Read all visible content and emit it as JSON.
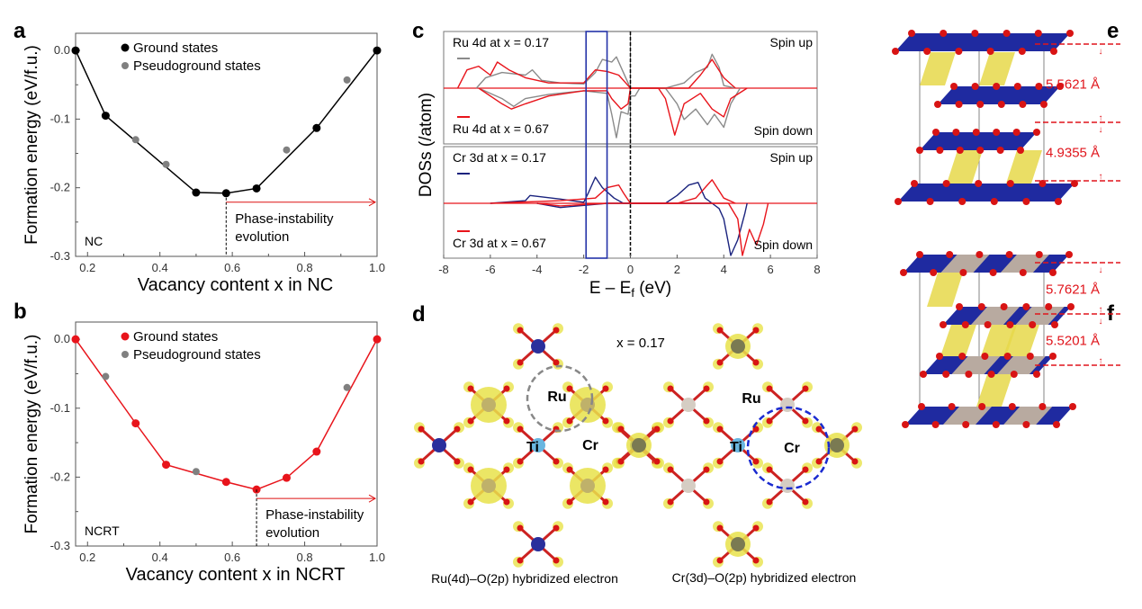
{
  "panel_labels": {
    "a": "a",
    "b": "b",
    "c": "c",
    "d": "d",
    "e": "e",
    "f": "f"
  },
  "colors": {
    "ground_a": "#000000",
    "ground_b": "#e8141b",
    "pseudo": "#808080",
    "ru017": "#8a8a8a",
    "ru067": "#e8141b",
    "cr017": "#1a237e",
    "cr067": "#e8141b",
    "highlight_box": "#2433a8",
    "octahedron_blue": "#1f2aa0",
    "octahedron_yellow": "#e6d84a",
    "oxygen": "#d81414"
  },
  "chart_data": [
    {
      "id": "a",
      "type": "scatter",
      "xlabel": "Vacancy content x in NC",
      "ylabel": "Formation energy (eV/f.u.)",
      "xlim": [
        0.167,
        1.0
      ],
      "ylim": [
        -0.3,
        0.025
      ],
      "xticks": [
        "0.2",
        "0.4",
        "0.6",
        "0.8",
        "1.0"
      ],
      "yticks": [
        "0.0",
        "-0.1",
        "-0.2",
        "-0.3"
      ],
      "legend": [
        "Ground states",
        "Pseudoground states"
      ],
      "legend_placement": "top-left",
      "inset_label": "NC",
      "annotation": "Phase-instability evolution",
      "annotation_lines": [
        "Phase-instability",
        "evolution"
      ],
      "annotation_x": 0.583,
      "ground": {
        "x": [
          0.167,
          0.25,
          0.5,
          0.583,
          0.667,
          0.833,
          1.0
        ],
        "y": [
          0,
          -0.095,
          -0.207,
          -0.208,
          -0.201,
          -0.113,
          0
        ]
      },
      "pseudo": {
        "x": [
          0.333,
          0.417,
          0.75,
          0.917
        ],
        "y": [
          -0.13,
          -0.166,
          -0.145,
          -0.043
        ]
      }
    },
    {
      "id": "b",
      "type": "scatter",
      "xlabel": "Vacancy content x in NCRT",
      "ylabel": "Formation energy (eV/f.u.)",
      "xlim": [
        0.167,
        1.0
      ],
      "ylim": [
        -0.3,
        0.025
      ],
      "xticks": [
        "0.2",
        "0.4",
        "0.6",
        "0.8",
        "1.0"
      ],
      "yticks": [
        "0.0",
        "-0.1",
        "-0.2",
        "-0.3"
      ],
      "legend": [
        "Ground states",
        "Pseudoground states"
      ],
      "legend_placement": "top-left",
      "inset_label": "NCRT",
      "annotation": "Phase-instability evolution",
      "annotation_lines": [
        "Phase-instability",
        "evolution"
      ],
      "annotation_x": 0.667,
      "ground": {
        "x": [
          0.167,
          0.333,
          0.417,
          0.583,
          0.667,
          0.75,
          0.833,
          1.0
        ],
        "y": [
          0,
          -0.122,
          -0.182,
          -0.207,
          -0.218,
          -0.201,
          -0.163,
          0
        ]
      },
      "pseudo": {
        "x": [
          0.25,
          0.5,
          0.917
        ],
        "y": [
          -0.054,
          -0.192,
          -0.07
        ]
      }
    },
    {
      "id": "c",
      "type": "line",
      "xlabel": "E – E",
      "xlabel_sub": "f",
      "xlabel_unit": " (eV)",
      "ylabel": "DOSs (/atom)",
      "xlim": [
        -8,
        8
      ],
      "xticks": [
        "-8",
        "-6",
        "-4",
        "-2",
        "0",
        "2",
        "4",
        "6",
        "8"
      ],
      "highlight_range": [
        -1.9,
        -1.0
      ],
      "panels": [
        {
          "spin_up": "Spin up",
          "spin_down": "Spin down",
          "legend": [
            "Ru 4d at x = 0.17",
            "Ru 4d at x = 0.67"
          ],
          "series": [
            {
              "name": "Ru 4d at x = 0.17",
              "color": "#8a8a8a",
              "up": [
                [
                  -6.6,
                  0
                ],
                [
                  -6.2,
                  0.2
                ],
                [
                  -5.5,
                  0.3
                ],
                [
                  -4.5,
                  0.25
                ],
                [
                  -4.2,
                  0.35
                ],
                [
                  -3.8,
                  0.15
                ],
                [
                  -3,
                  0.1
                ],
                [
                  -2,
                  0.08
                ],
                [
                  -1.5,
                  0.3
                ],
                [
                  -1.2,
                  0.55
                ],
                [
                  -0.8,
                  0.5
                ],
                [
                  -0.6,
                  0.6
                ],
                [
                  -0.4,
                  0.4
                ],
                [
                  -0.1,
                  0.1
                ],
                [
                  0,
                  0
                ],
                [
                  1.5,
                  0
                ],
                [
                  2.3,
                  0.1
                ],
                [
                  2.8,
                  0.3
                ],
                [
                  3.3,
                  0.4
                ],
                [
                  3.5,
                  0.65
                ],
                [
                  3.8,
                  0.4
                ],
                [
                  4,
                  0.05
                ],
                [
                  4.5,
                  0
                ]
              ],
              "down": [
                [
                  -6.5,
                  0
                ],
                [
                  -5.5,
                  -0.2
                ],
                [
                  -5,
                  -0.35
                ],
                [
                  -4.5,
                  -0.2
                ],
                [
                  -3.5,
                  -0.12
                ],
                [
                  -2,
                  -0.05
                ],
                [
                  -1,
                  -0.1
                ],
                [
                  -0.8,
                  -0.5
                ],
                [
                  -0.6,
                  -0.95
                ],
                [
                  -0.4,
                  -0.45
                ],
                [
                  -0.1,
                  -0.5
                ],
                [
                  0,
                  -0.15
                ],
                [
                  0.2,
                  -0.15
                ],
                [
                  0.4,
                  0
                ],
                [
                  1.5,
                  0
                ],
                [
                  2,
                  -0.3
                ],
                [
                  2.3,
                  -0.6
                ],
                [
                  2.8,
                  -0.4
                ],
                [
                  3.3,
                  -0.7
                ],
                [
                  3.6,
                  -0.5
                ],
                [
                  4,
                  -0.75
                ],
                [
                  4.3,
                  -0.3
                ],
                [
                  4.7,
                  0
                ]
              ]
            },
            {
              "name": "Ru 4d at x = 0.67",
              "color": "#e8141b",
              "up": [
                [
                  -7.4,
                  0
                ],
                [
                  -7,
                  0.35
                ],
                [
                  -6.5,
                  0.42
                ],
                [
                  -6,
                  0.25
                ],
                [
                  -5.7,
                  0.5
                ],
                [
                  -5.2,
                  0.35
                ],
                [
                  -4.5,
                  0.2
                ],
                [
                  -3.5,
                  0.1
                ],
                [
                  -2,
                  0.1
                ],
                [
                  -1.5,
                  0.35
                ],
                [
                  -1,
                  0.32
                ],
                [
                  -0.5,
                  0.25
                ],
                [
                  -0.2,
                  0.1
                ],
                [
                  0,
                  0
                ],
                [
                  2.5,
                  0
                ],
                [
                  3,
                  0.25
                ],
                [
                  3.5,
                  0.55
                ],
                [
                  4,
                  0.2
                ],
                [
                  4.5,
                  0
                ]
              ],
              "down": [
                [
                  -6.5,
                  0
                ],
                [
                  -5.5,
                  -0.3
                ],
                [
                  -5.1,
                  -0.4
                ],
                [
                  -4.5,
                  -0.3
                ],
                [
                  -3.5,
                  -0.15
                ],
                [
                  -2,
                  -0.05
                ],
                [
                  -1,
                  -0.05
                ],
                [
                  -0.8,
                  -0.2
                ],
                [
                  -0.4,
                  -0.4
                ],
                [
                  -0.1,
                  -0.3
                ],
                [
                  0,
                  0
                ],
                [
                  1.2,
                  0
                ],
                [
                  1.5,
                  -0.2
                ],
                [
                  1.9,
                  -0.9
                ],
                [
                  2.3,
                  -0.3
                ],
                [
                  3,
                  -0.1
                ],
                [
                  3.5,
                  -0.4
                ],
                [
                  4,
                  -0.55
                ],
                [
                  4.3,
                  -0.2
                ],
                [
                  5,
                  0
                ]
              ]
            }
          ]
        },
        {
          "spin_up": "Spin up",
          "spin_down": "Spin down",
          "legend": [
            "Cr 3d at x = 0.17",
            "Cr 3d at x = 0.67"
          ],
          "series": [
            {
              "name": "Cr 3d at x = 0.17",
              "color": "#1a237e",
              "up": [
                [
                  -6,
                  0
                ],
                [
                  -4.5,
                  0.05
                ],
                [
                  -4.3,
                  0.15
                ],
                [
                  -3,
                  0.08
                ],
                [
                  -2,
                  0.02
                ],
                [
                  -1.8,
                  0.2
                ],
                [
                  -1.5,
                  0.5
                ],
                [
                  -1.2,
                  0.3
                ],
                [
                  -0.7,
                  0.1
                ],
                [
                  -0.3,
                  0
                ],
                [
                  1.5,
                  0
                ],
                [
                  2,
                  0.15
                ],
                [
                  2.5,
                  0.35
                ],
                [
                  2.9,
                  0.4
                ],
                [
                  3.2,
                  0.1
                ],
                [
                  3.5,
                  0
                ]
              ],
              "down": [
                [
                  -4,
                  0
                ],
                [
                  -3,
                  -0.08
                ],
                [
                  -1,
                  0
                ],
                [
                  3.5,
                  0
                ],
                [
                  3.8,
                  -0.1
                ],
                [
                  4,
                  -0.3
                ],
                [
                  4.3,
                  -1.0
                ],
                [
                  4.6,
                  -0.7
                ],
                [
                  4.9,
                  -0.2
                ],
                [
                  5,
                  0
                ]
              ]
            },
            {
              "name": "Cr 3d at x = 0.67",
              "color": "#e8141b",
              "up": [
                [
                  -6,
                  0
                ],
                [
                  -3,
                  0.05
                ],
                [
                  -1.5,
                  0.1
                ],
                [
                  -1,
                  0.3
                ],
                [
                  -0.5,
                  0.35
                ],
                [
                  -0.3,
                  0.2
                ],
                [
                  0,
                  0
                ],
                [
                  2,
                  0
                ],
                [
                  2.8,
                  0.1
                ],
                [
                  3.5,
                  0.45
                ],
                [
                  4,
                  0.1
                ],
                [
                  4.5,
                  0
                ]
              ],
              "down": [
                [
                  -4,
                  0
                ],
                [
                  -3,
                  -0.05
                ],
                [
                  -1,
                  0
                ],
                [
                  4.2,
                  0
                ],
                [
                  4.6,
                  -0.3
                ],
                [
                  4.8,
                  -1.0
                ],
                [
                  5.1,
                  -0.5
                ],
                [
                  5.4,
                  -0.8
                ],
                [
                  5.7,
                  -0.4
                ],
                [
                  5.9,
                  0
                ]
              ]
            }
          ]
        }
      ]
    }
  ],
  "panel_d": {
    "title": "x = 0.17",
    "left": {
      "caption": "Ru(4d)–O(2p) hybridized electron",
      "labels": [
        "Ru",
        "Ti",
        "Cr"
      ]
    },
    "right": {
      "caption": "Cr(3d)–O(2p) hybridized electron",
      "labels": [
        "Ru",
        "Ti",
        "Cr"
      ]
    }
  },
  "panel_e": {
    "distances": [
      "5.5621 Å",
      "4.9355 Å"
    ]
  },
  "panel_f": {
    "distances": [
      "5.7621 Å",
      "5.5201 Å"
    ]
  }
}
